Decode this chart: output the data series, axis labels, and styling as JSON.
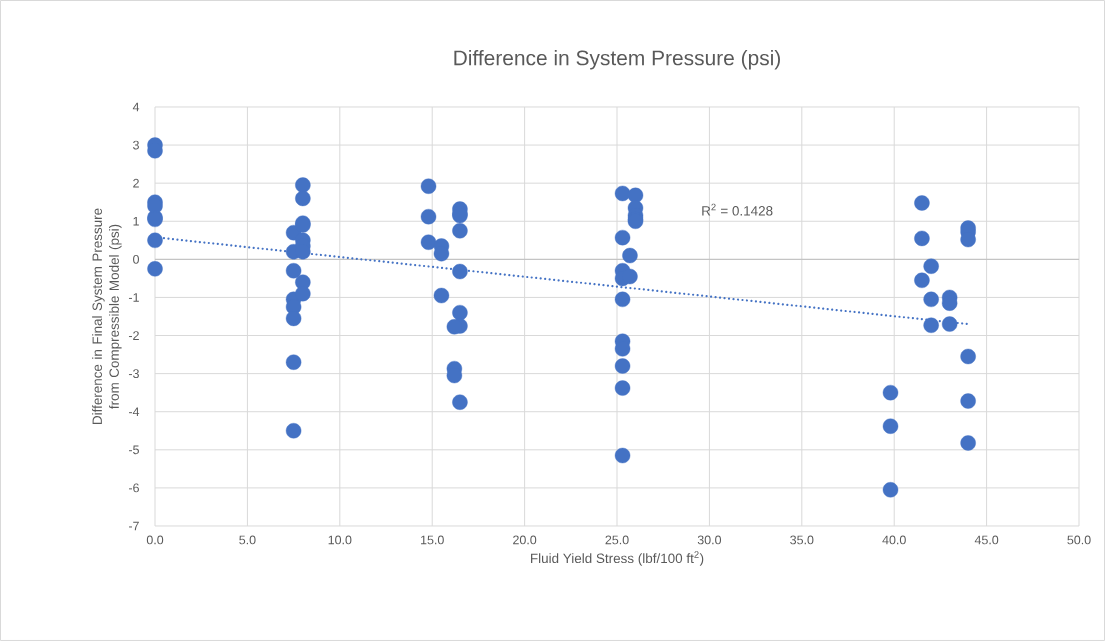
{
  "chart_data": {
    "type": "scatter",
    "title": "Difference in System Pressure (psi)",
    "xlabel": "Fluid Yield Stress (lbf/100 ft$^{2}$)",
    "ylabel": "Difference in Final System Pressure from Compressible Model (psi)",
    "series": [
      {
        "color": "#4472c4",
        "marker": "circle",
        "x": [
          0,
          0,
          0,
          0,
          0,
          0,
          0,
          0,
          7.5,
          7.5,
          7.5,
          7.5,
          7.5,
          7.5,
          7.5,
          7.5,
          8,
          8,
          8,
          8,
          8,
          8,
          8,
          8,
          8,
          14.8,
          14.8,
          14.8,
          15.5,
          15.5,
          15.5,
          16.5,
          16.5,
          16.5,
          16.5,
          16.5,
          16.5,
          16.5,
          16.5,
          16.2,
          16.2,
          16.2,
          25.3,
          25.3,
          25.3,
          25.3,
          25.3,
          25.3,
          25.3,
          25.3,
          25.3,
          25.3,
          25.7,
          25.7,
          26,
          26,
          26,
          26,
          26,
          39.8,
          39.8,
          39.8,
          41.5,
          41.5,
          41.5,
          42,
          42,
          42,
          43,
          43,
          43,
          44,
          44,
          44,
          44,
          44,
          44
        ],
        "values": [
          3.0,
          2.85,
          1.5,
          1.4,
          1.1,
          1.05,
          0.5,
          -0.25,
          0.7,
          0.2,
          -0.3,
          -1.05,
          -1.25,
          -1.55,
          -2.7,
          -4.5,
          1.95,
          1.6,
          0.95,
          0.9,
          0.5,
          0.35,
          0.2,
          -0.6,
          -0.9,
          1.92,
          1.12,
          0.45,
          0.35,
          0.15,
          -0.95,
          1.32,
          1.2,
          1.15,
          0.75,
          -0.32,
          -1.4,
          -1.75,
          -3.75,
          -1.77,
          -2.87,
          -3.05,
          1.73,
          0.57,
          -0.3,
          -0.5,
          -1.05,
          -2.15,
          -2.35,
          -2.8,
          -3.38,
          -5.15,
          0.1,
          -0.45,
          1.68,
          1.35,
          1.15,
          1.05,
          1.0,
          -3.5,
          -4.38,
          -6.05,
          1.48,
          0.55,
          -0.55,
          -0.18,
          -1.05,
          -1.73,
          -1.0,
          -1.15,
          -1.7,
          0.82,
          0.72,
          0.52,
          -2.55,
          -3.72,
          -4.82
        ]
      },
      {
        "type": "line",
        "color": "#4472c4",
        "marker": "none",
        "line_style": "dotted",
        "x": [
          0,
          44
        ],
        "values": [
          0.58,
          -1.7
        ]
      }
    ],
    "annotations": [
      "R$^{2}$ = 0.1428"
    ],
    "xlim": [
      0,
      50
    ],
    "ylim": [
      -7,
      4
    ],
    "xticks": [
      {
        "value": 0,
        "label": "0.0"
      },
      {
        "value": 5,
        "label": "5.0"
      },
      {
        "value": 10,
        "label": "10.0"
      },
      {
        "value": 15,
        "label": "15.0"
      },
      {
        "value": 20,
        "label": "20.0"
      },
      {
        "value": 25,
        "label": "25.0"
      },
      {
        "value": 30,
        "label": "30.0"
      },
      {
        "value": 35,
        "label": "35.0"
      },
      {
        "value": 40,
        "label": "40.0"
      },
      {
        "value": 45,
        "label": "45.0"
      },
      {
        "value": 50,
        "label": "50.0"
      }
    ],
    "yticks": [
      -7,
      -6,
      -5,
      -4,
      -3,
      -2,
      -1,
      0,
      1,
      2,
      3,
      4
    ],
    "grid": true
  }
}
